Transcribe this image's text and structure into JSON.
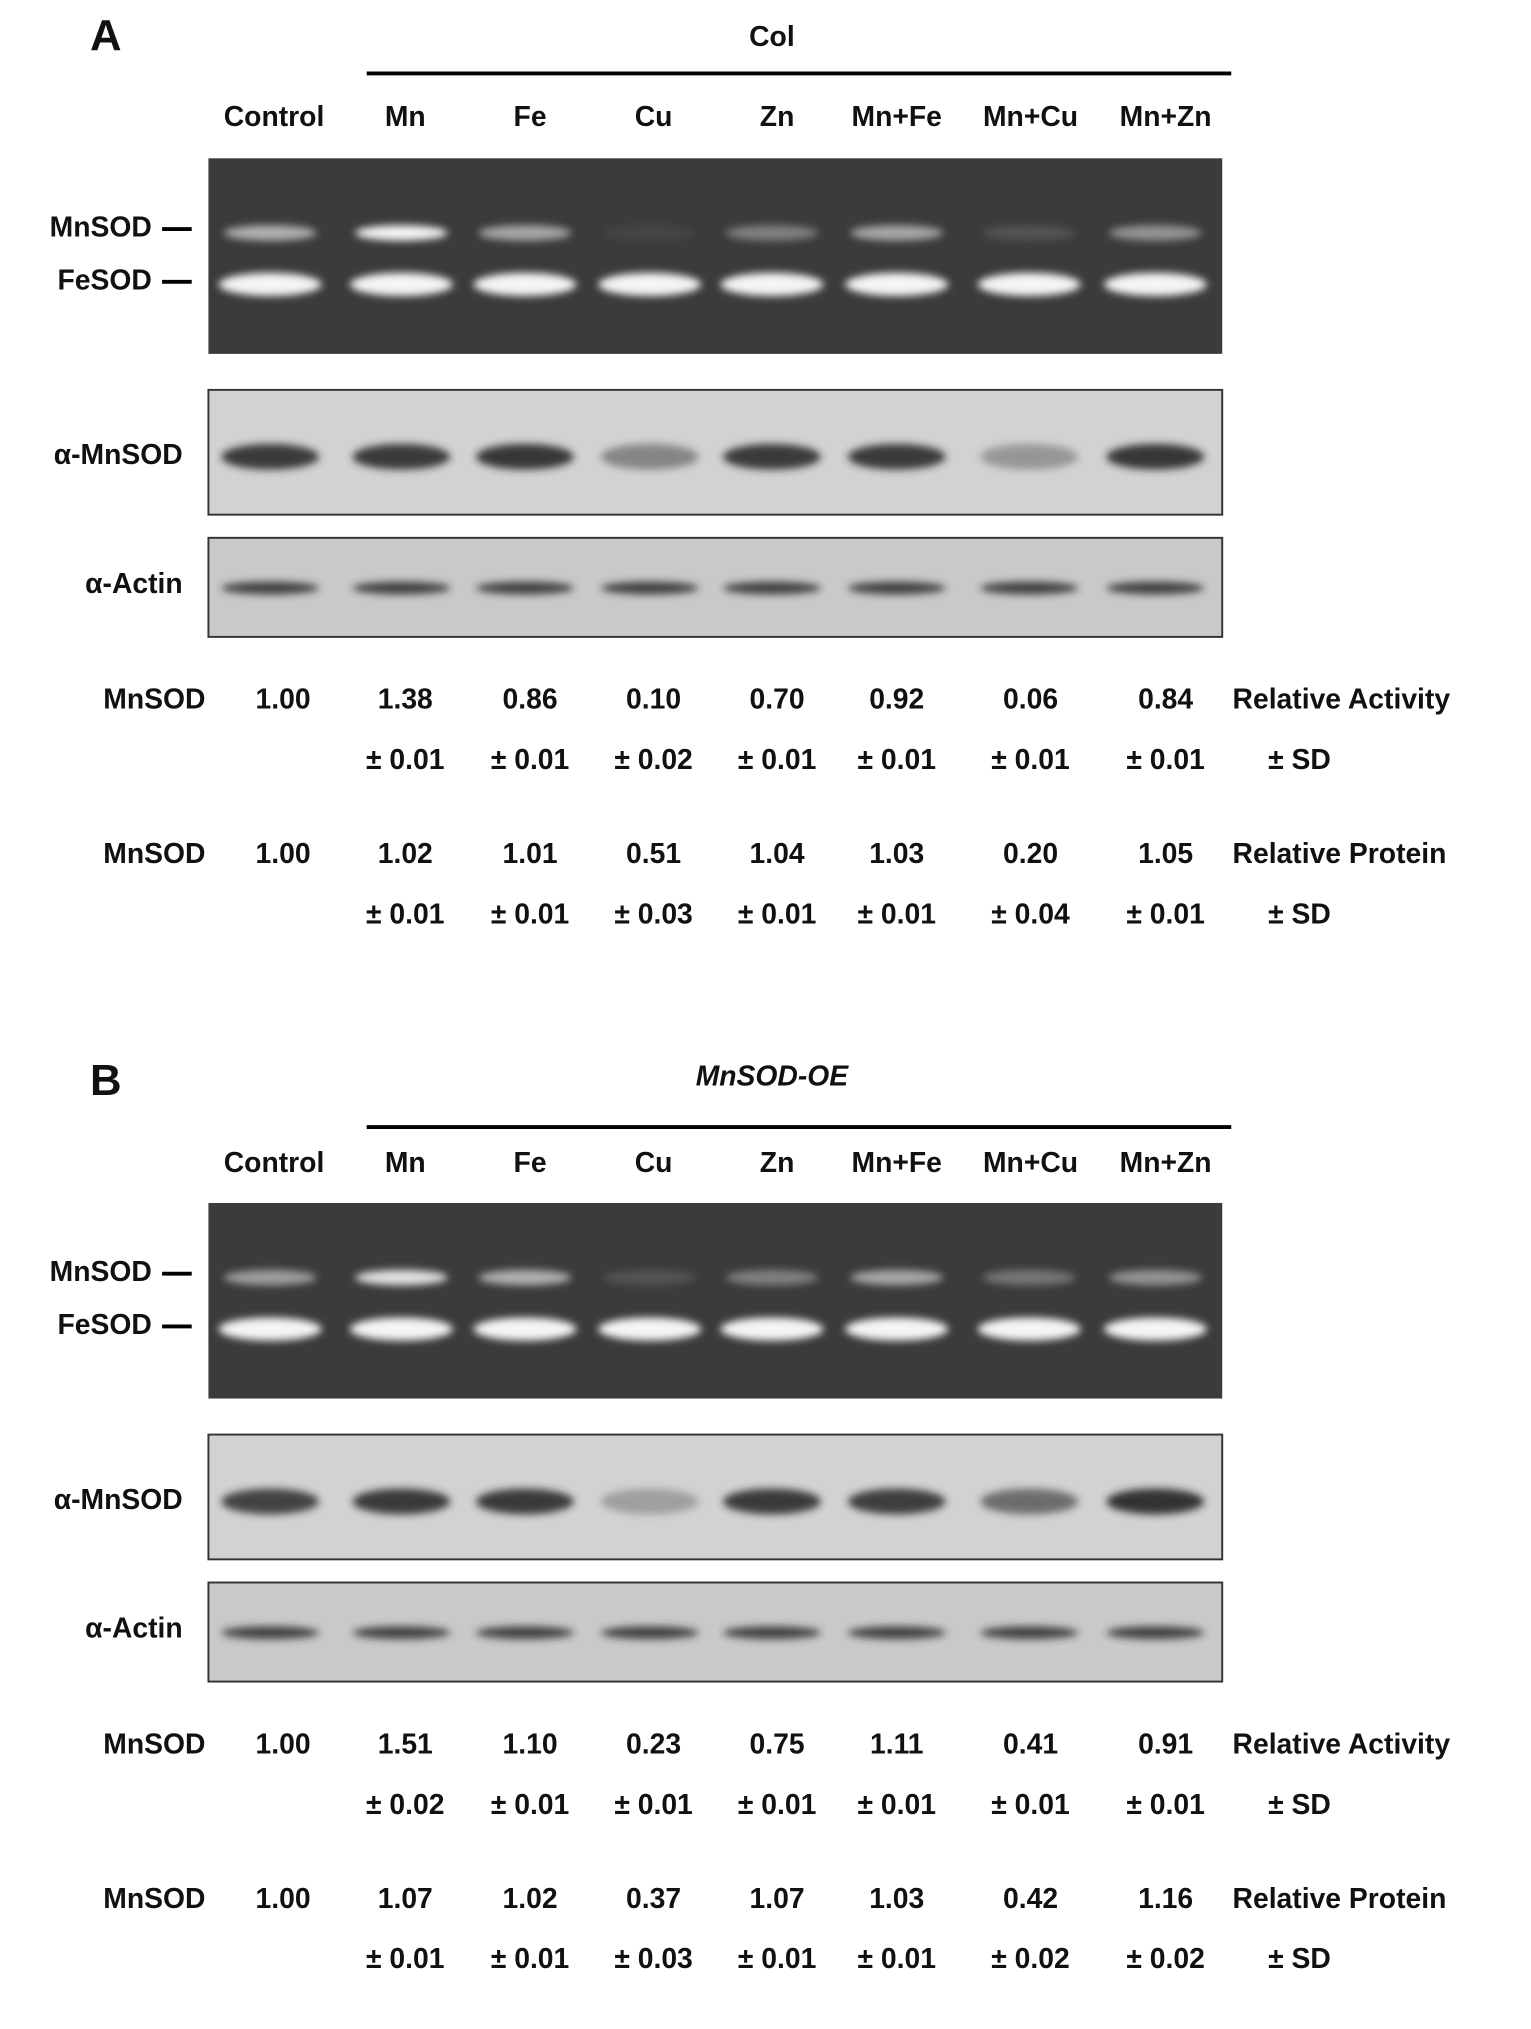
{
  "panels": [
    {
      "label": "A",
      "group": "Col",
      "lanes": [
        "Control",
        "Mn",
        "Fe",
        "Cu",
        "Zn",
        "Mn+Fe",
        "Mn+Cu",
        "Mn+Zn"
      ],
      "gel_bands": [
        "MnSOD",
        "FeSOD"
      ],
      "blots": [
        "α-MnSOD",
        "α-Actin"
      ],
      "rows": [
        {
          "protein": "MnSOD",
          "control": "1.00",
          "values": [
            "1.38",
            "0.86",
            "0.10",
            "0.70",
            "0.92",
            "0.06",
            "0.84"
          ],
          "errors": [
            "± 0.01",
            "± 0.01",
            "± 0.02",
            "± 0.01",
            "± 0.01",
            "± 0.01",
            "± 0.01"
          ],
          "measure": "Relative Activity",
          "error_label": "± SD"
        },
        {
          "protein": "MnSOD",
          "control": "1.00",
          "values": [
            "1.02",
            "1.01",
            "0.51",
            "1.04",
            "1.03",
            "0.20",
            "1.05"
          ],
          "errors": [
            "± 0.01",
            "± 0.01",
            "± 0.03",
            "± 0.01",
            "± 0.01",
            "± 0.04",
            "± 0.01"
          ],
          "measure": "Relative Protein",
          "error_label": "± SD"
        }
      ]
    },
    {
      "label": "B",
      "group": "MnSOD-OE",
      "lanes": [
        "Control",
        "Mn",
        "Fe",
        "Cu",
        "Zn",
        "Mn+Fe",
        "Mn+Cu",
        "Mn+Zn"
      ],
      "gel_bands": [
        "MnSOD",
        "FeSOD"
      ],
      "blots": [
        "α-MnSOD",
        "α-Actin"
      ],
      "rows": [
        {
          "protein": "MnSOD",
          "control": "1.00",
          "values": [
            "1.51",
            "1.10",
            "0.23",
            "0.75",
            "1.11",
            "0.41",
            "0.91"
          ],
          "errors": [
            "± 0.02",
            "± 0.01",
            "± 0.01",
            "± 0.01",
            "± 0.01",
            "± 0.01",
            "± 0.01"
          ],
          "measure": "Relative Activity",
          "error_label": "± SD"
        },
        {
          "protein": "MnSOD",
          "control": "1.00",
          "values": [
            "1.07",
            "1.02",
            "0.37",
            "1.07",
            "1.03",
            "0.42",
            "1.16"
          ],
          "errors": [
            "± 0.01",
            "± 0.01",
            "± 0.03",
            "± 0.01",
            "± 0.01",
            "± 0.02",
            "± 0.02"
          ],
          "measure": "Relative Protein",
          "error_label": "± SD"
        }
      ]
    }
  ]
}
